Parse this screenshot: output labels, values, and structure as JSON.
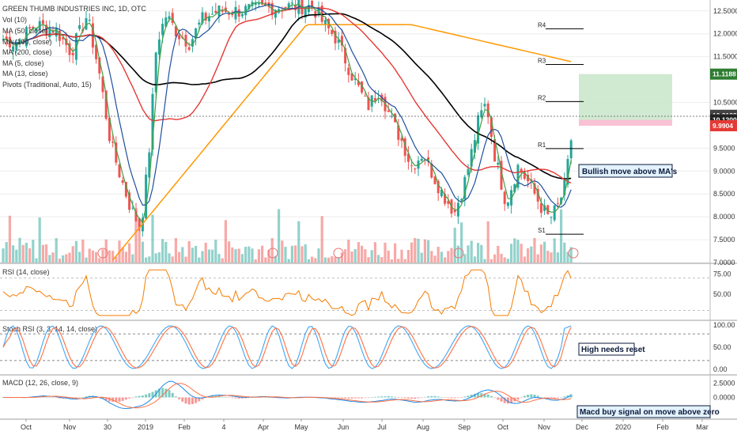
{
  "main_title": "GREEN THUMB INDUSTRIES INC, 1D, OTC",
  "legend": [
    "Vol (10)",
    "MA (50, close)",
    "MA (100, close)",
    "MA (200, close)",
    "MA (5, close)",
    "MA (13, close)",
    "Pivots (Traditional, Auto, 15)"
  ],
  "pivot_labels": [
    "R4",
    "R3",
    "R2",
    "R1",
    "S1"
  ],
  "annotations": {
    "ma": "Bullish move above MA's",
    "stoch": "High needs reset",
    "macd": "Macd buy signal on move above zero"
  },
  "colors": {
    "up": "#26a69a",
    "down": "#ef5350",
    "ma50": "#e53935",
    "ma100": "#000000",
    "ma200": "#ff9800",
    "ma5": "#43a047",
    "ma13": "#1e4f9c",
    "rsi": "#f57c00",
    "k": "#42a5f5",
    "d": "#ff7043",
    "target": "#c8e6c9",
    "stop": "#f8bbd0"
  },
  "chart_data": [
    {
      "type": "candlestick",
      "title": "GREEN THUMB INDUSTRIES INC, 1D, OTC",
      "x_ticks": [
        "Oct",
        "Nov",
        "30",
        "2019",
        "Feb",
        "4",
        "Apr",
        "May",
        "Jun",
        "Jul",
        "Aug",
        "Sep",
        "Oct",
        "Nov",
        "Dec",
        "2020",
        "Feb",
        "Mar"
      ],
      "y_ticks": [
        "12.5000",
        "12.0000",
        "11.5000",
        "10.5000",
        "9.5000",
        "9.0000",
        "8.5000",
        "8.0000",
        "7.5000",
        "7.0000"
      ],
      "ylim": [
        7.0,
        12.6
      ],
      "price_tags": [
        {
          "value": "11.1188",
          "color": "#2e7d32"
        },
        {
          "value": "10.2188",
          "color": "#424242"
        },
        {
          "value": "10.1200",
          "color": "#212121"
        },
        {
          "value": "9.9904",
          "color": "#e53935"
        }
      ],
      "pivots": {
        "R4": 12.11,
        "R3": 11.33,
        "R2": 10.52,
        "R1": 9.49,
        "S1": 7.62
      },
      "target_zone": [
        10.12,
        11.12
      ],
      "stop_zone": [
        9.99,
        10.12
      ],
      "series_note": "Daily candles with MA 5/13/50/100/200 and volume bars"
    },
    {
      "type": "line",
      "title": "RSI (14, close)",
      "y_ticks": [
        "75.00",
        "50.00"
      ],
      "ylim": [
        20,
        85
      ],
      "guides": [
        70,
        30
      ]
    },
    {
      "type": "line",
      "title": "Stoch RSI (3, 3, 14, 14, close)",
      "y_ticks": [
        "100.00",
        "50.00",
        "0.00"
      ],
      "ylim": [
        -5,
        105
      ],
      "guides": [
        80,
        20
      ]
    },
    {
      "type": "bar",
      "title": "MACD (12, 26, close, 9)",
      "y_ticks": [
        "2.5000",
        "0.0000"
      ],
      "ylim": [
        -3.5,
        3.5
      ]
    }
  ]
}
